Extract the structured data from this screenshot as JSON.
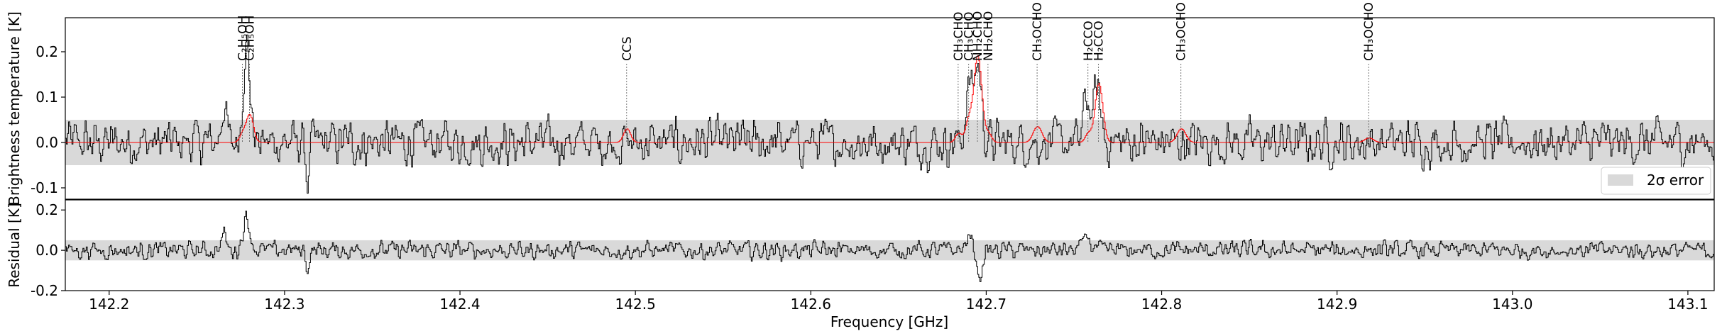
{
  "chart_data": [
    {
      "panel": "top",
      "type": "line",
      "ylabel": "Brightness temperature [K]",
      "xlim": [
        142.175,
        143.115
      ],
      "ylim": [
        -0.125,
        0.275
      ],
      "yticks": [
        "-0.1",
        "0.0",
        "0.1",
        "0.2"
      ],
      "ytick_values": [
        -0.1,
        0.0,
        0.1,
        0.2
      ],
      "error_band": 0.05,
      "legend": {
        "position": "bottom-right",
        "label": "2σ error"
      },
      "series_colors": {
        "observed": "#000000",
        "model": "#ff0000",
        "band": "#d3d3d3"
      },
      "line_markers": [
        {
          "x": 142.276,
          "label": "C₂H₅OH"
        },
        {
          "x": 142.28,
          "label": "C₂H₅OH"
        },
        {
          "x": 142.495,
          "label": "CCS"
        },
        {
          "x": 142.684,
          "label": "CH₃CHO"
        },
        {
          "x": 142.69,
          "label": "CH₃CHO"
        },
        {
          "x": 142.695,
          "label": "NH₂CHO"
        },
        {
          "x": 142.701,
          "label": "NH₂CHO"
        },
        {
          "x": 142.729,
          "label": "CH₃OCHO"
        },
        {
          "x": 142.758,
          "label": "H₂CCO"
        },
        {
          "x": 142.764,
          "label": "H₂CCO"
        },
        {
          "x": 142.811,
          "label": "CH₃OCHO"
        },
        {
          "x": 142.918,
          "label": "CH₃OCHO"
        }
      ],
      "model_peaks": [
        {
          "x": 142.276,
          "amp": 0.02,
          "w": 0.0018
        },
        {
          "x": 142.28,
          "amp": 0.06,
          "w": 0.002
        },
        {
          "x": 142.495,
          "amp": 0.03,
          "w": 0.002
        },
        {
          "x": 142.684,
          "amp": 0.02,
          "w": 0.0018
        },
        {
          "x": 142.69,
          "amp": 0.05,
          "w": 0.002
        },
        {
          "x": 142.695,
          "amp": 0.19,
          "w": 0.0022
        },
        {
          "x": 142.701,
          "amp": 0.02,
          "w": 0.0018
        },
        {
          "x": 142.729,
          "amp": 0.035,
          "w": 0.0025
        },
        {
          "x": 142.758,
          "amp": 0.02,
          "w": 0.0018
        },
        {
          "x": 142.764,
          "amp": 0.13,
          "w": 0.0022
        },
        {
          "x": 142.811,
          "amp": 0.03,
          "w": 0.0025
        },
        {
          "x": 142.918,
          "amp": 0.01,
          "w": 0.0025
        }
      ],
      "observed_features": [
        {
          "x": 142.265,
          "amp": 0.08,
          "w": 0.0015
        },
        {
          "x": 142.278,
          "amp": 0.21,
          "w": 0.002
        },
        {
          "x": 142.313,
          "amp": -0.1,
          "w": 0.0008
        },
        {
          "x": 142.69,
          "amp": 0.12,
          "w": 0.002
        },
        {
          "x": 142.695,
          "amp": 0.17,
          "w": 0.002
        },
        {
          "x": 142.757,
          "amp": 0.1,
          "w": 0.0018
        },
        {
          "x": 142.763,
          "amp": 0.12,
          "w": 0.002
        }
      ],
      "noise_rms": 0.025
    },
    {
      "panel": "bottom",
      "type": "line",
      "xlabel": "Frequency [GHz]",
      "ylabel": "Residual [K]",
      "xlim": [
        142.175,
        143.115
      ],
      "ylim": [
        -0.2,
        0.25
      ],
      "xticks": [
        "142.2",
        "142.3",
        "142.4",
        "142.5",
        "142.6",
        "142.7",
        "142.8",
        "142.9",
        "143.0",
        "143.1"
      ],
      "xtick_values": [
        142.2,
        142.3,
        142.4,
        142.5,
        142.6,
        142.7,
        142.8,
        142.9,
        143.0,
        143.1
      ],
      "yticks": [
        "-0.2",
        "0.0",
        "0.2"
      ],
      "ytick_values": [
        -0.2,
        0.0,
        0.2
      ],
      "error_band": 0.05,
      "residual_features": [
        {
          "x": 142.265,
          "amp": 0.08,
          "w": 0.0015
        },
        {
          "x": 142.278,
          "amp": 0.16,
          "w": 0.002
        },
        {
          "x": 142.313,
          "amp": -0.1,
          "w": 0.0008
        },
        {
          "x": 142.69,
          "amp": 0.06,
          "w": 0.002
        },
        {
          "x": 142.696,
          "amp": -0.14,
          "w": 0.0015
        },
        {
          "x": 142.757,
          "amp": 0.08,
          "w": 0.0018
        }
      ],
      "noise_rms": 0.022
    }
  ]
}
